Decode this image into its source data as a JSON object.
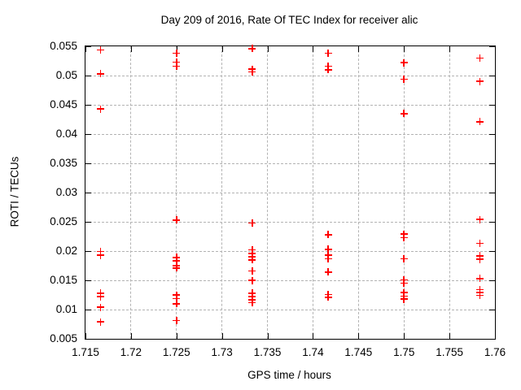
{
  "chart_data": {
    "type": "scatter",
    "title": "Day 209 of 2016, Rate Of TEC Index for receiver alic",
    "xlabel": "GPS time / hours",
    "ylabel": "ROTI / TECUs",
    "xlim": [
      1.715,
      1.76
    ],
    "ylim": [
      0.005,
      0.055
    ],
    "xtick_values": [
      1.715,
      1.72,
      1.725,
      1.73,
      1.735,
      1.74,
      1.745,
      1.75,
      1.755,
      1.76
    ],
    "xtick_labels": [
      "1.715",
      "1.72",
      "1.725",
      "1.73",
      "1.735",
      "1.74",
      "1.745",
      "1.75",
      "1.755",
      "1.76"
    ],
    "ytick_values": [
      0.005,
      0.01,
      0.015,
      0.02,
      0.025,
      0.03,
      0.035,
      0.04,
      0.045,
      0.05,
      0.055
    ],
    "ytick_labels": [
      "0.005",
      "0.01",
      "0.015",
      "0.02",
      "0.025",
      "0.03",
      "0.035",
      "0.04",
      "0.045",
      "0.05",
      "0.055"
    ],
    "grid": true,
    "legend": "none",
    "marker": "plus",
    "series": [
      {
        "name": "ROTI",
        "color": "#ff0000",
        "points": [
          [
            1.71667,
            0.0544
          ],
          [
            1.71667,
            0.0503
          ],
          [
            1.71667,
            0.0443
          ],
          [
            1.71667,
            0.0199
          ],
          [
            1.71667,
            0.0193
          ],
          [
            1.71667,
            0.0128
          ],
          [
            1.71667,
            0.0122
          ],
          [
            1.71667,
            0.0104
          ],
          [
            1.71667,
            0.0079
          ],
          [
            1.725,
            0.0538
          ],
          [
            1.725,
            0.0523
          ],
          [
            1.725,
            0.0516
          ],
          [
            1.725,
            0.0253
          ],
          [
            1.725,
            0.0189
          ],
          [
            1.725,
            0.0183
          ],
          [
            1.725,
            0.0175
          ],
          [
            1.725,
            0.0171
          ],
          [
            1.725,
            0.0125
          ],
          [
            1.725,
            0.0119
          ],
          [
            1.725,
            0.011
          ],
          [
            1.725,
            0.0081
          ],
          [
            1.73333,
            0.0546
          ],
          [
            1.73333,
            0.0511
          ],
          [
            1.73333,
            0.0506
          ],
          [
            1.73333,
            0.0248
          ],
          [
            1.73333,
            0.0202
          ],
          [
            1.73333,
            0.0196
          ],
          [
            1.73333,
            0.019
          ],
          [
            1.73333,
            0.0185
          ],
          [
            1.73333,
            0.0166
          ],
          [
            1.73333,
            0.015
          ],
          [
            1.73333,
            0.0128
          ],
          [
            1.73333,
            0.0122
          ],
          [
            1.73333,
            0.0117
          ],
          [
            1.73333,
            0.0112
          ],
          [
            1.74167,
            0.0538
          ],
          [
            1.74167,
            0.0516
          ],
          [
            1.74167,
            0.051
          ],
          [
            1.74167,
            0.0228
          ],
          [
            1.74167,
            0.0203
          ],
          [
            1.74167,
            0.0193
          ],
          [
            1.74167,
            0.0187
          ],
          [
            1.74167,
            0.0164
          ],
          [
            1.74167,
            0.0126
          ],
          [
            1.74167,
            0.0121
          ],
          [
            1.75,
            0.0522
          ],
          [
            1.75,
            0.0494
          ],
          [
            1.75,
            0.0435
          ],
          [
            1.75,
            0.0229
          ],
          [
            1.75,
            0.0223
          ],
          [
            1.75,
            0.0187
          ],
          [
            1.75,
            0.0151
          ],
          [
            1.75,
            0.0145
          ],
          [
            1.75,
            0.0129
          ],
          [
            1.75,
            0.0123
          ],
          [
            1.75,
            0.0118
          ],
          [
            1.75833,
            0.053
          ],
          [
            1.75833,
            0.049
          ],
          [
            1.75833,
            0.0421
          ],
          [
            1.75833,
            0.0254
          ],
          [
            1.75833,
            0.0213
          ],
          [
            1.75833,
            0.0192
          ],
          [
            1.75833,
            0.0186
          ],
          [
            1.75833,
            0.0153
          ],
          [
            1.75833,
            0.0134
          ],
          [
            1.75833,
            0.0129
          ],
          [
            1.75833,
            0.0124
          ]
        ]
      }
    ],
    "colors": {
      "marker": "#ff0000",
      "grid": "#b3b3b3",
      "border": "#000000",
      "text": "#000000",
      "background": "#ffffff"
    }
  }
}
